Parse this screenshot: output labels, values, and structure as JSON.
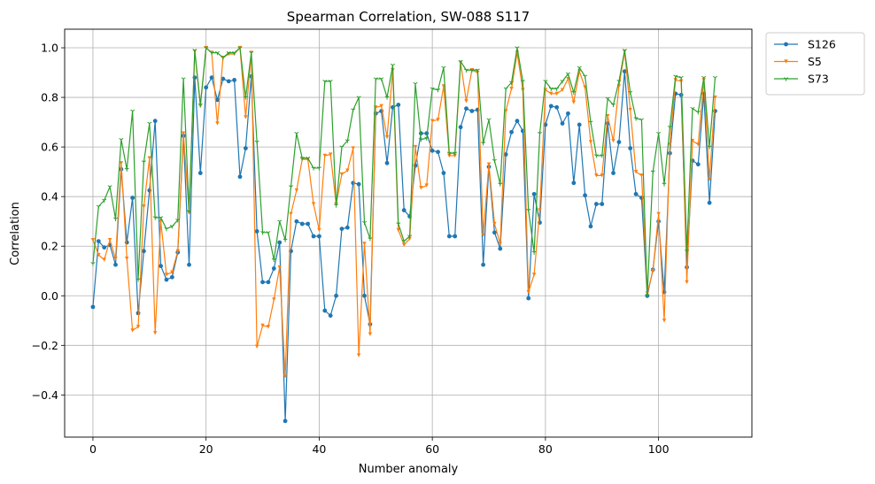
{
  "chart_data": {
    "type": "line",
    "title": "Spearman Correlation, SW-088  S117",
    "xlabel": "Number anomaly",
    "ylabel": "Correlation",
    "xlim": [
      -5,
      116.5
    ],
    "ylim": [
      -0.57,
      1.075
    ],
    "x_ticks": [
      0,
      20,
      40,
      60,
      80,
      100
    ],
    "y_ticks": [
      -0.4,
      -0.2,
      0.0,
      0.2,
      0.4,
      0.6,
      0.8,
      1.0
    ],
    "x_tick_labels": [
      "0",
      "20",
      "40",
      "60",
      "80",
      "100"
    ],
    "y_tick_labels": [
      "−0.4",
      "−0.2",
      "0.0",
      "0.2",
      "0.4",
      "0.6",
      "0.8",
      "1.0"
    ],
    "grid": true,
    "legend_position": "outside-top-right",
    "series": [
      {
        "name": "S126",
        "color": "#1f77b4",
        "marker": "circle",
        "values": [
          -0.045,
          0.22,
          0.195,
          0.205,
          0.125,
          0.51,
          0.215,
          0.395,
          -0.07,
          0.18,
          0.425,
          0.705,
          0.12,
          0.065,
          0.075,
          0.175,
          0.645,
          0.125,
          0.88,
          0.495,
          0.84,
          0.88,
          0.79,
          0.875,
          0.865,
          0.87,
          0.48,
          0.595,
          0.885,
          0.26,
          0.055,
          0.055,
          0.11,
          0.215,
          -0.505,
          0.18,
          0.3,
          0.29,
          0.29,
          0.24,
          0.24,
          -0.06,
          -0.08,
          0.0,
          0.27,
          0.275,
          0.455,
          0.45,
          0.0,
          -0.115,
          0.735,
          0.745,
          0.535,
          0.76,
          0.77,
          0.345,
          0.32,
          0.525,
          0.655,
          0.655,
          0.585,
          0.58,
          0.495,
          0.24,
          0.24,
          0.68,
          0.755,
          0.745,
          0.75,
          0.125,
          0.52,
          0.255,
          0.19,
          0.57,
          0.66,
          0.705,
          0.665,
          -0.01,
          0.41,
          0.295,
          0.69,
          0.765,
          0.76,
          0.695,
          0.735,
          0.455,
          0.69,
          0.405,
          0.28,
          0.37,
          0.37,
          0.695,
          0.495,
          0.62,
          0.905,
          0.595,
          0.41,
          0.395,
          0.0,
          0.105,
          0.3,
          0.015,
          0.575,
          0.815,
          0.81,
          0.115,
          0.545,
          0.53,
          0.815,
          0.375,
          0.745
        ]
      },
      {
        "name": "S5",
        "color": "#ff7f0e",
        "marker": "triangle-down",
        "values": [
          0.225,
          0.165,
          0.145,
          0.225,
          0.15,
          0.535,
          0.15,
          -0.14,
          -0.125,
          0.36,
          0.555,
          -0.15,
          0.3,
          0.085,
          0.095,
          0.18,
          0.655,
          0.335,
          0.985,
          0.765,
          1.0,
          0.98,
          0.695,
          0.96,
          0.975,
          0.975,
          1.0,
          0.72,
          0.98,
          -0.205,
          -0.12,
          -0.125,
          -0.015,
          0.115,
          -0.325,
          0.33,
          0.425,
          0.55,
          0.55,
          0.37,
          0.265,
          0.565,
          0.57,
          0.37,
          0.49,
          0.505,
          0.595,
          -0.24,
          0.21,
          -0.155,
          0.76,
          0.765,
          0.64,
          0.91,
          0.265,
          0.205,
          0.23,
          0.6,
          0.435,
          0.445,
          0.705,
          0.71,
          0.845,
          0.565,
          0.565,
          0.94,
          0.785,
          0.91,
          0.9,
          0.245,
          0.53,
          0.29,
          0.21,
          0.745,
          0.835,
          0.98,
          0.83,
          0.015,
          0.085,
          0.345,
          0.83,
          0.815,
          0.815,
          0.83,
          0.875,
          0.78,
          0.905,
          0.84,
          0.62,
          0.485,
          0.485,
          0.725,
          0.625,
          0.845,
          0.985,
          0.75,
          0.5,
          0.485,
          0.01,
          0.1,
          0.33,
          -0.1,
          0.61,
          0.87,
          0.865,
          0.055,
          0.625,
          0.61,
          0.87,
          0.47,
          0.8
        ]
      },
      {
        "name": "S73",
        "color": "#2ca02c",
        "marker": "tri-down",
        "values": [
          0.13,
          0.36,
          0.385,
          0.44,
          0.31,
          0.63,
          0.51,
          0.745,
          0.065,
          0.54,
          0.695,
          0.315,
          0.315,
          0.27,
          0.28,
          0.305,
          0.875,
          0.34,
          0.99,
          0.77,
          1.0,
          0.98,
          0.98,
          0.96,
          0.98,
          0.98,
          1.0,
          0.8,
          0.98,
          0.62,
          0.255,
          0.255,
          0.145,
          0.3,
          0.225,
          0.44,
          0.655,
          0.555,
          0.555,
          0.515,
          0.515,
          0.865,
          0.865,
          0.365,
          0.6,
          0.625,
          0.75,
          0.8,
          0.295,
          0.23,
          0.875,
          0.875,
          0.8,
          0.93,
          0.29,
          0.22,
          0.24,
          0.855,
          0.63,
          0.635,
          0.835,
          0.83,
          0.92,
          0.575,
          0.575,
          0.945,
          0.91,
          0.91,
          0.91,
          0.615,
          0.71,
          0.545,
          0.45,
          0.835,
          0.86,
          1.0,
          0.865,
          0.345,
          0.175,
          0.655,
          0.865,
          0.835,
          0.835,
          0.865,
          0.895,
          0.82,
          0.92,
          0.885,
          0.7,
          0.565,
          0.565,
          0.795,
          0.77,
          0.865,
          0.99,
          0.82,
          0.715,
          0.71,
          0.0,
          0.5,
          0.655,
          0.45,
          0.68,
          0.885,
          0.88,
          0.18,
          0.755,
          0.74,
          0.88,
          0.6,
          0.88
        ]
      }
    ]
  }
}
